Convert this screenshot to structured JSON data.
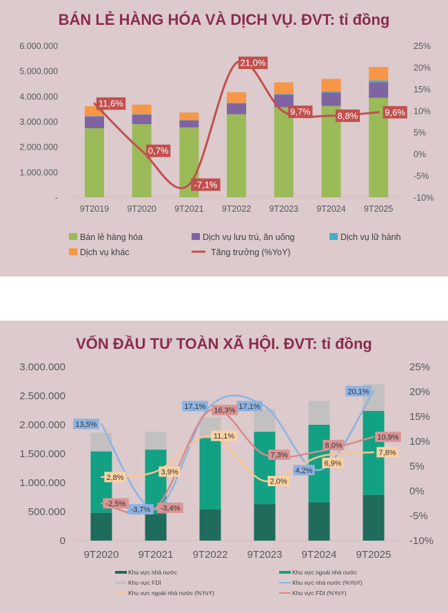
{
  "chart_data": [
    {
      "type": "bar",
      "stacked": true,
      "title": "BÁN LẺ HÀNG HÓA VÀ DỊCH VỤ. ĐVT: tỉ đồng",
      "categories": [
        "9T2019",
        "9T2020",
        "9T2021",
        "9T2022",
        "9T2023",
        "9T2024",
        "9T2025"
      ],
      "y_ticks": [
        "-",
        "1.000.000",
        "2.000.000",
        "3.000.000",
        "4.000.000",
        "5.000.000",
        "6.000.000"
      ],
      "ylim": [
        0,
        6000000
      ],
      "y2_ticks": [
        "-10%",
        "-5%",
        "0%",
        "5%",
        "10%",
        "15%",
        "20%",
        "25%"
      ],
      "y2lim": [
        -10,
        25
      ],
      "legend_position": "bottom",
      "series": [
        {
          "name": "Bán lẻ hàng hóa",
          "color": "#9bbb59",
          "values": [
            2730000,
            2890000,
            2760000,
            3280000,
            3560000,
            3610000,
            3930000
          ]
        },
        {
          "name": "Dịch vụ lưu trú, ăn uống",
          "color": "#8064a2",
          "values": [
            460000,
            370000,
            280000,
            430000,
            490000,
            530000,
            610000
          ]
        },
        {
          "name": "Dịch vụ lữ hành",
          "color": "#4bacc6",
          "values": [
            20000,
            20000,
            10000,
            20000,
            30000,
            50000,
            80000
          ]
        },
        {
          "name": "Dịch vụ khác",
          "color": "#f79646",
          "values": [
            390000,
            380000,
            300000,
            420000,
            460000,
            490000,
            530000
          ]
        }
      ],
      "line_series": [
        {
          "name": "Tăng trưởng (%YoY)",
          "color": "#c0504d",
          "axis": "right",
          "values": [
            11.6,
            0.7,
            -7.1,
            21.0,
            9.7,
            8.8,
            9.6
          ],
          "labels": [
            "11,6%",
            "0,7%",
            "-7,1%",
            "21,0%",
            "9,7%",
            "8,8%",
            "9,6%"
          ]
        }
      ]
    },
    {
      "type": "bar",
      "stacked": true,
      "title": "VỐN ĐẦU TƯ TOÀN XÃ HỘI. ĐVT: tỉ đồng",
      "categories": [
        "9T2020",
        "9T2021",
        "9T2022",
        "9T2023",
        "9T2024",
        "9T2025"
      ],
      "y_ticks": [
        "0",
        "500.000",
        "1.000.000",
        "1.500.000",
        "2.000.000",
        "2.500.000",
        "3.000.000"
      ],
      "ylim": [
        0,
        3000000
      ],
      "y2_ticks": [
        "-10%",
        "-5%",
        "0%",
        "5%",
        "10%",
        "15%",
        "20%",
        "25%"
      ],
      "y2lim": [
        -10,
        25
      ],
      "legend_position": "bottom",
      "series": [
        {
          "name": "Khu vực nhà nước",
          "color": "#1f6b5c",
          "values": [
            480000,
            460000,
            540000,
            630000,
            660000,
            790000
          ]
        },
        {
          "name": "Khu vực ngoài nhà nước",
          "color": "#12a183",
          "values": [
            1060000,
            1110000,
            1230000,
            1250000,
            1340000,
            1450000
          ]
        },
        {
          "name": "Khu vực FDI",
          "color": "#c3c0c0",
          "values": [
            320000,
            310000,
            360000,
            390000,
            410000,
            460000
          ]
        }
      ],
      "line_series": [
        {
          "name": "Khu vực nhà nước (%YoY)",
          "color": "#8db3e2",
          "label_bg": "#8db3e2",
          "axis": "right",
          "values": [
            13.5,
            -3.7,
            17.1,
            17.1,
            4.2,
            20.1
          ],
          "labels": [
            "13,5%",
            "-3,7%",
            "17,1%",
            "17,1%",
            "4,2%",
            "20,1%"
          ]
        },
        {
          "name": "Khu vực ngoài nhà nước (%YoY)",
          "color": "#fac58f",
          "label_bg": "#fcd2a2",
          "axis": "right",
          "values": [
            2.8,
            3.9,
            11.1,
            2.0,
            6.9,
            7.8
          ],
          "labels": [
            "2,8%",
            "3,9%",
            "11,1%",
            "2,0%",
            "6,9%",
            "7,8%"
          ]
        },
        {
          "name": "Khu vực FDI (%YoY)",
          "color": "#d88a8a",
          "label_bg": "#d99594",
          "axis": "right",
          "values": [
            -2.5,
            -3.4,
            16.3,
            7.3,
            8.0,
            10.9
          ],
          "labels": [
            "-2,5%",
            "-3,4%",
            "16,3%",
            "7,3%",
            "8,0%",
            "10,9%"
          ]
        }
      ]
    }
  ]
}
